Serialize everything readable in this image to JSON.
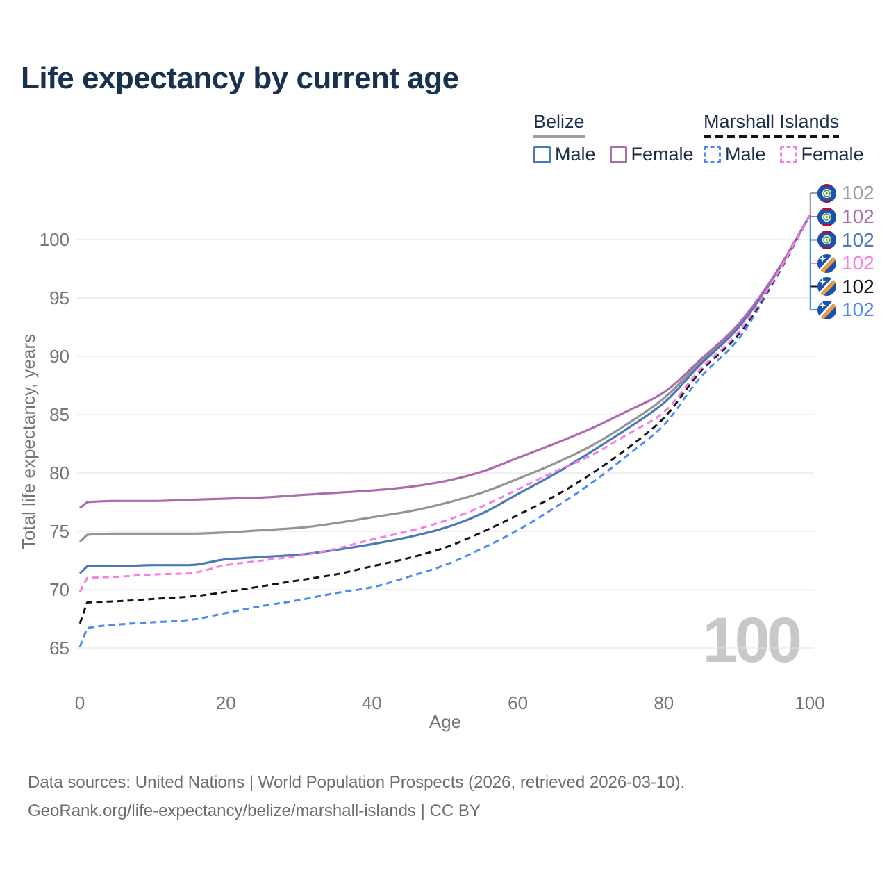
{
  "title": "Life expectancy by current age",
  "legend": {
    "groups": [
      {
        "label": "Belize",
        "line_style": "solid",
        "line_color": "#9e9e9e",
        "items": [
          {
            "label": "Male",
            "color": "#4a79b8"
          },
          {
            "label": "Female",
            "color": "#ac6bad"
          }
        ]
      },
      {
        "label": "Marshall Islands",
        "line_style": "dashed",
        "line_color": "#141414",
        "items": [
          {
            "label": "Male",
            "color": "#4b8bf0"
          },
          {
            "label": "Female",
            "color": "#f87ce6"
          }
        ]
      }
    ]
  },
  "chart_data": {
    "type": "line",
    "title": "Life expectancy by current age",
    "xlabel": "Age",
    "ylabel": "Total life expectancy, years",
    "xticks": [
      0,
      20,
      40,
      60,
      80,
      100
    ],
    "yticks": [
      65,
      70,
      75,
      80,
      85,
      90,
      95,
      100
    ],
    "xlim": [
      0,
      100
    ],
    "ylim": [
      63.5,
      103
    ],
    "grid": "horizontal",
    "age_counter": "100",
    "ages": [
      0,
      1,
      5,
      10,
      15,
      20,
      25,
      30,
      35,
      40,
      45,
      50,
      55,
      60,
      65,
      70,
      75,
      80,
      85,
      90,
      95,
      100
    ],
    "series": [
      {
        "name": "Belize (both sexes)",
        "country": "Belize",
        "sex": "all",
        "color": "#949494",
        "dash": "solid",
        "values": [
          74.1,
          74.7,
          74.8,
          74.8,
          74.8,
          74.9,
          75.1,
          75.3,
          75.7,
          76.2,
          76.7,
          77.4,
          78.3,
          79.5,
          80.8,
          82.3,
          84.2,
          86.4,
          89.5,
          92.4,
          96.7,
          102.1
        ]
      },
      {
        "name": "Belize Male",
        "country": "Belize",
        "sex": "male",
        "color": "#4a79b8",
        "dash": "solid",
        "values": [
          71.4,
          72.0,
          72.0,
          72.1,
          72.1,
          72.6,
          72.8,
          73.0,
          73.4,
          73.9,
          74.5,
          75.3,
          76.5,
          78.2,
          79.9,
          81.8,
          83.8,
          86.0,
          89.3,
          92.3,
          96.7,
          102.1
        ]
      },
      {
        "name": "Belize Female",
        "country": "Belize",
        "sex": "female",
        "color": "#ac6bad",
        "dash": "solid",
        "values": [
          77.0,
          77.5,
          77.6,
          77.6,
          77.7,
          77.8,
          77.9,
          78.1,
          78.3,
          78.5,
          78.8,
          79.3,
          80.1,
          81.3,
          82.5,
          83.8,
          85.3,
          86.9,
          89.7,
          92.6,
          96.8,
          102.1
        ]
      },
      {
        "name": "Marshall Islands Male",
        "country": "Marshall Islands",
        "sex": "male",
        "color": "#4b8bf0",
        "dash": "dashed",
        "values": [
          65.1,
          66.7,
          67.0,
          67.2,
          67.4,
          68.0,
          68.6,
          69.1,
          69.7,
          70.2,
          71.1,
          72.1,
          73.5,
          75.1,
          77.0,
          79.1,
          81.5,
          84.1,
          88.2,
          91.3,
          96.3,
          102.1
        ]
      },
      {
        "name": "Marshall Islands (both sexes)",
        "country": "Marshall Islands",
        "sex": "all",
        "color": "#141414",
        "dash": "dashed",
        "values": [
          67.1,
          68.9,
          69.0,
          69.2,
          69.4,
          69.8,
          70.3,
          70.8,
          71.3,
          72.0,
          72.7,
          73.6,
          74.9,
          76.4,
          78.0,
          79.9,
          82.1,
          84.7,
          88.7,
          91.7,
          96.4,
          102.1
        ]
      },
      {
        "name": "Marshall Islands Female",
        "country": "Marshall Islands",
        "sex": "female",
        "color": "#f87ce6",
        "dash": "dashed",
        "values": [
          69.8,
          71.0,
          71.1,
          71.3,
          71.4,
          72.1,
          72.5,
          72.9,
          73.5,
          74.3,
          75.0,
          75.9,
          77.1,
          78.6,
          80.1,
          81.5,
          83.3,
          85.2,
          88.9,
          91.9,
          96.5,
          102.1
        ]
      }
    ]
  },
  "end_labels": [
    {
      "country": "Belize",
      "series": "both sexes",
      "value": "102",
      "color": "#9e9e9e"
    },
    {
      "country": "Belize",
      "series": "Female",
      "value": "102",
      "color": "#ac6bad"
    },
    {
      "country": "Belize",
      "series": "Male",
      "value": "102",
      "color": "#4a79b8"
    },
    {
      "country": "Marshall Islands",
      "series": "Female",
      "value": "102",
      "color": "#f87ce6"
    },
    {
      "country": "Marshall Islands",
      "series": "both sexes",
      "value": "102",
      "color": "#141414"
    },
    {
      "country": "Marshall Islands",
      "series": "Male",
      "value": "102",
      "color": "#4b8bf0"
    }
  ],
  "source": {
    "line1": "Data sources: United Nations | World Population Prospects (2026, retrieved 2026-03-10).",
    "line2": "GeoRank.org/life-expectancy/belize/marshall-islands | CC BY"
  }
}
